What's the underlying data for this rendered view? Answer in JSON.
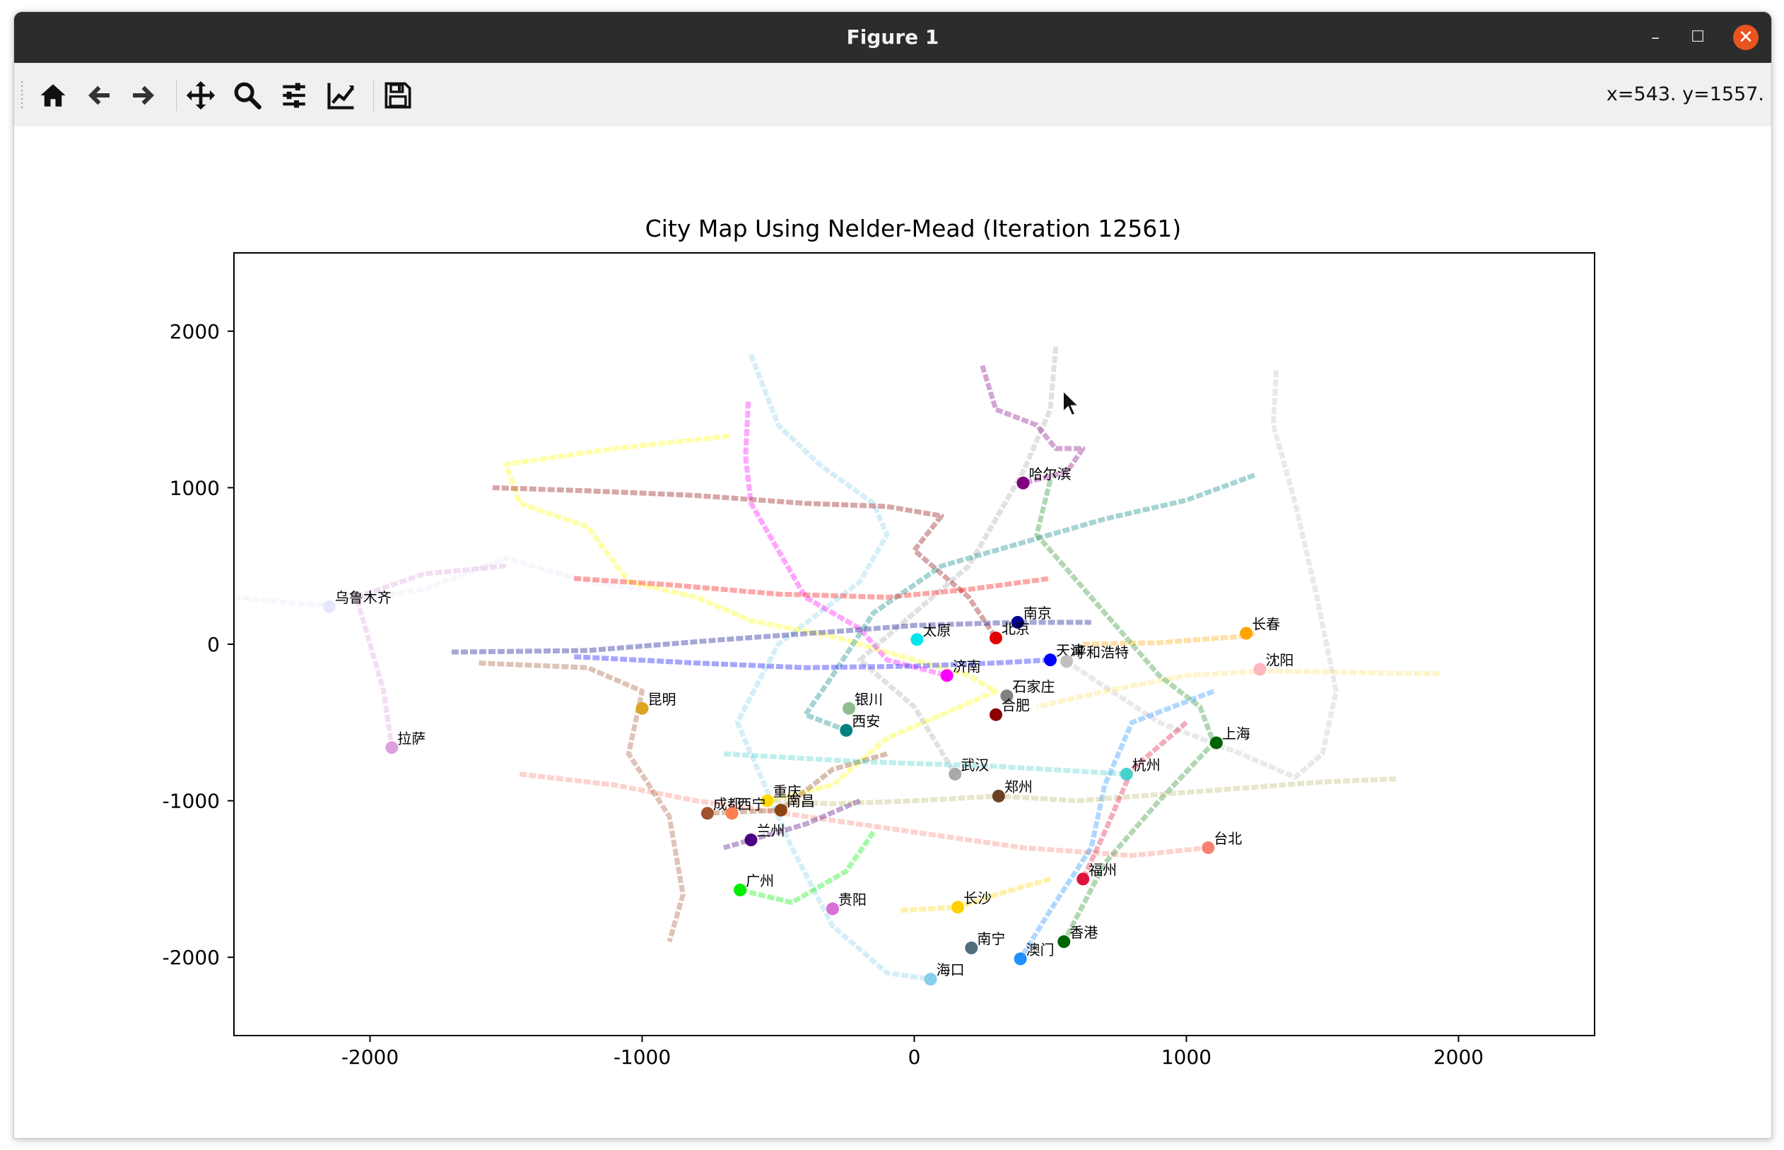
{
  "window": {
    "title": "Figure 1",
    "minimize_label": "–",
    "maximize_label": "☐",
    "close_label": "✕"
  },
  "toolbar": {
    "buttons": [
      {
        "name": "home-button",
        "icon": "home-icon"
      },
      {
        "name": "back-button",
        "icon": "arrow-left-icon"
      },
      {
        "name": "forward-button",
        "icon": "arrow-right-icon"
      },
      {
        "name": "pan-button",
        "icon": "move-icon"
      },
      {
        "name": "zoom-button",
        "icon": "search-icon"
      },
      {
        "name": "configure-subplots-button",
        "icon": "sliders-icon"
      },
      {
        "name": "edit-axis-button",
        "icon": "chart-line-icon"
      },
      {
        "name": "save-button",
        "icon": "floppy-disk-icon"
      }
    ],
    "coords": "x=543. y=1557."
  },
  "chart_data": {
    "type": "scatter",
    "title": "City Map Using Nelder-Mead (Iteration 12561)",
    "xlabel": "",
    "ylabel": "",
    "xlim": [
      -2500,
      2500
    ],
    "ylim": [
      -2500,
      2500
    ],
    "xticks": [
      -2000,
      -1000,
      0,
      1000,
      2000
    ],
    "yticks": [
      2000,
      1000,
      0,
      -1000,
      -2000
    ],
    "xtick_labels": [
      "-2000",
      "-1000",
      "0",
      "1000",
      "2000"
    ],
    "ytick_labels": [
      "2000",
      "1000",
      "0",
      "-1000",
      "-2000"
    ],
    "grid": false,
    "legend": "none",
    "cities": [
      {
        "name": "哈尔滨",
        "x": 400,
        "y": 1030,
        "color": "#800080"
      },
      {
        "name": "乌鲁木齐",
        "x": -2150,
        "y": 240,
        "color": "#e6e6fa"
      },
      {
        "name": "南京",
        "x": 380,
        "y": 140,
        "color": "#00008b"
      },
      {
        "name": "长春",
        "x": 1220,
        "y": 70,
        "color": "#ffa500"
      },
      {
        "name": "太原",
        "x": 10,
        "y": 30,
        "color": "#00e5ee"
      },
      {
        "name": "北京",
        "x": 300,
        "y": 40,
        "color": "#e00000"
      },
      {
        "name": "天津",
        "x": 500,
        "y": -100,
        "color": "#0000ff"
      },
      {
        "name": "呼和浩特",
        "x": 560,
        "y": -110,
        "color": "#c0c0c0"
      },
      {
        "name": "沈阳",
        "x": 1270,
        "y": -160,
        "color": "#ffb6c1"
      },
      {
        "name": "济南",
        "x": 120,
        "y": -200,
        "color": "#ff00ff"
      },
      {
        "name": "石家庄",
        "x": 340,
        "y": -330,
        "color": "#808080"
      },
      {
        "name": "合肥",
        "x": 300,
        "y": -450,
        "color": "#8b0000"
      },
      {
        "name": "银川",
        "x": -240,
        "y": -410,
        "color": "#8fbc8f"
      },
      {
        "name": "西安",
        "x": -250,
        "y": -550,
        "color": "#008080"
      },
      {
        "name": "昆明",
        "x": -1000,
        "y": -410,
        "color": "#daa520"
      },
      {
        "name": "拉萨",
        "x": -1920,
        "y": -660,
        "color": "#dda0dd"
      },
      {
        "name": "上海",
        "x": 1110,
        "y": -630,
        "color": "#006400"
      },
      {
        "name": "杭州",
        "x": 780,
        "y": -830,
        "color": "#48d1cc"
      },
      {
        "name": "武汉",
        "x": 150,
        "y": -830,
        "color": "#a9a9a9"
      },
      {
        "name": "郑州",
        "x": 310,
        "y": -970,
        "color": "#6b4226"
      },
      {
        "name": "重庆",
        "x": -540,
        "y": -1000,
        "color": "#ffd700"
      },
      {
        "name": "南昌",
        "x": -490,
        "y": -1060,
        "color": "#8b4513"
      },
      {
        "name": "成都",
        "x": -760,
        "y": -1080,
        "color": "#a0522d"
      },
      {
        "name": "西宁",
        "x": -670,
        "y": -1080,
        "color": "#ff7f50"
      },
      {
        "name": "兰州",
        "x": -600,
        "y": -1250,
        "color": "#4b0082"
      },
      {
        "name": "台北",
        "x": 1080,
        "y": -1300,
        "color": "#fa8072"
      },
      {
        "name": "福州",
        "x": 620,
        "y": -1500,
        "color": "#dc143c"
      },
      {
        "name": "广州",
        "x": -640,
        "y": -1570,
        "color": "#00ee00"
      },
      {
        "name": "贵阳",
        "x": -300,
        "y": -1690,
        "color": "#da70d6"
      },
      {
        "name": "长沙",
        "x": 160,
        "y": -1680,
        "color": "#ffd000"
      },
      {
        "name": "香港",
        "x": 550,
        "y": -1900,
        "color": "#006400"
      },
      {
        "name": "南宁",
        "x": 210,
        "y": -1940,
        "color": "#4f6d7a"
      },
      {
        "name": "澳门",
        "x": 390,
        "y": -2010,
        "color": "#1e90ff"
      },
      {
        "name": "海口",
        "x": 60,
        "y": -2140,
        "color": "#87ceeb"
      }
    ],
    "trajectories": [
      {
        "color": "#87ceeb",
        "points": [
          [
            -600,
            1850
          ],
          [
            -500,
            1400
          ],
          [
            -350,
            1150
          ],
          [
            -150,
            900
          ],
          [
            -100,
            700
          ],
          [
            -200,
            400
          ],
          [
            -500,
            0
          ],
          [
            -650,
            -500
          ],
          [
            -550,
            -900
          ],
          [
            -450,
            -1300
          ],
          [
            -300,
            -1800
          ],
          [
            -100,
            -2100
          ],
          [
            60,
            -2140
          ]
        ]
      },
      {
        "color": "#ffff00",
        "points": [
          [
            -680,
            1330
          ],
          [
            -1100,
            1250
          ],
          [
            -1500,
            1150
          ],
          [
            -1450,
            900
          ],
          [
            -1200,
            750
          ],
          [
            -1050,
            400
          ],
          [
            -800,
            300
          ],
          [
            -600,
            150
          ],
          [
            -300,
            50
          ],
          [
            0,
            -100
          ],
          [
            200,
            -200
          ],
          [
            300,
            -300
          ],
          [
            -100,
            -600
          ],
          [
            -300,
            -900
          ],
          [
            -540,
            -1000
          ]
        ]
      },
      {
        "color": "#ff00ff",
        "points": [
          [
            -610,
            1550
          ],
          [
            -620,
            1200
          ],
          [
            -600,
            900
          ],
          [
            -500,
            600
          ],
          [
            -400,
            300
          ],
          [
            -200,
            100
          ],
          [
            -100,
            -100
          ],
          [
            120,
            -200
          ]
        ]
      },
      {
        "color": "#a9a9a9",
        "points": [
          [
            520,
            1900
          ],
          [
            500,
            1500
          ],
          [
            400,
            1100
          ],
          [
            300,
            800
          ],
          [
            200,
            500
          ],
          [
            0,
            200
          ],
          [
            -200,
            -100
          ],
          [
            0,
            -400
          ],
          [
            150,
            -830
          ]
        ]
      },
      {
        "color": "#800080",
        "points": [
          [
            250,
            1780
          ],
          [
            300,
            1500
          ],
          [
            450,
            1400
          ],
          [
            520,
            1250
          ],
          [
            620,
            1250
          ],
          [
            560,
            1100
          ],
          [
            400,
            1030
          ]
        ]
      },
      {
        "color": "#8b0000",
        "points": [
          [
            -1550,
            1000
          ],
          [
            -1200,
            980
          ],
          [
            -800,
            950
          ],
          [
            -400,
            900
          ],
          [
            -100,
            880
          ],
          [
            100,
            820
          ],
          [
            0,
            600
          ],
          [
            200,
            300
          ],
          [
            300,
            40
          ]
        ]
      },
      {
        "color": "#008080",
        "points": [
          [
            1250,
            1080
          ],
          [
            1000,
            920
          ],
          [
            700,
            800
          ],
          [
            400,
            650
          ],
          [
            100,
            500
          ],
          [
            -150,
            200
          ],
          [
            -300,
            -200
          ],
          [
            -400,
            -450
          ],
          [
            -250,
            -550
          ]
        ]
      },
      {
        "color": "#00008b",
        "points": [
          [
            -1700,
            -50
          ],
          [
            -1200,
            -40
          ],
          [
            -700,
            30
          ],
          [
            -300,
            80
          ],
          [
            0,
            120
          ],
          [
            380,
            140
          ],
          [
            650,
            140
          ]
        ]
      },
      {
        "color": "#0000ff",
        "points": [
          [
            -1250,
            -80
          ],
          [
            -800,
            -120
          ],
          [
            -400,
            -150
          ],
          [
            0,
            -140
          ],
          [
            300,
            -120
          ],
          [
            500,
            -100
          ]
        ]
      },
      {
        "color": "#e6e6fa",
        "points": [
          [
            -2500,
            300
          ],
          [
            -2200,
            250
          ],
          [
            -1800,
            350
          ],
          [
            -1500,
            550
          ],
          [
            -1200,
            400
          ],
          [
            -1000,
            350
          ]
        ]
      },
      {
        "color": "#dda0dd",
        "points": [
          [
            -1500,
            500
          ],
          [
            -1800,
            450
          ],
          [
            -2050,
            300
          ],
          [
            -2000,
            0
          ],
          [
            -1950,
            -300
          ],
          [
            -1920,
            -660
          ]
        ]
      },
      {
        "color": "#c0c0c0",
        "points": [
          [
            1330,
            1750
          ],
          [
            1320,
            1400
          ],
          [
            1400,
            900
          ],
          [
            1480,
            300
          ],
          [
            1550,
            -300
          ],
          [
            1500,
            -700
          ],
          [
            1400,
            -850
          ],
          [
            1200,
            -700
          ],
          [
            900,
            -500
          ],
          [
            560,
            -110
          ]
        ]
      },
      {
        "color": "#ffa500",
        "points": [
          [
            620,
            0
          ],
          [
            900,
            10
          ],
          [
            1200,
            50
          ],
          [
            1250,
            70
          ]
        ]
      },
      {
        "color": "#ffe066",
        "points": [
          [
            1930,
            -190
          ],
          [
            1600,
            -180
          ],
          [
            1300,
            -170
          ],
          [
            1000,
            -200
          ],
          [
            700,
            -300
          ],
          [
            450,
            -400
          ]
        ]
      },
      {
        "color": "#fa8072",
        "points": [
          [
            -1450,
            -830
          ],
          [
            -1100,
            -900
          ],
          [
            -800,
            -1000
          ],
          [
            -400,
            -1100
          ],
          [
            0,
            -1200
          ],
          [
            400,
            -1300
          ],
          [
            800,
            -1350
          ],
          [
            1080,
            -1300
          ]
        ]
      },
      {
        "color": "#228b22",
        "points": [
          [
            500,
            1050
          ],
          [
            450,
            700
          ],
          [
            600,
            400
          ],
          [
            750,
            100
          ],
          [
            900,
            -200
          ],
          [
            1050,
            -400
          ],
          [
            1100,
            -630
          ],
          [
            900,
            -1000
          ],
          [
            700,
            -1400
          ],
          [
            550,
            -1900
          ]
        ]
      },
      {
        "color": "#1e90ff",
        "points": [
          [
            1100,
            -300
          ],
          [
            800,
            -500
          ],
          [
            700,
            -900
          ],
          [
            650,
            -1300
          ],
          [
            500,
            -1700
          ],
          [
            390,
            -2010
          ]
        ]
      },
      {
        "color": "#ff0000",
        "points": [
          [
            -1250,
            420
          ],
          [
            -900,
            380
          ],
          [
            -500,
            320
          ],
          [
            -100,
            300
          ],
          [
            200,
            350
          ],
          [
            500,
            420
          ]
        ]
      },
      {
        "color": "#a0522d",
        "points": [
          [
            -1600,
            -120
          ],
          [
            -1200,
            -150
          ],
          [
            -1000,
            -300
          ],
          [
            -1050,
            -700
          ],
          [
            -900,
            -1100
          ],
          [
            -850,
            -1600
          ],
          [
            -900,
            -1900
          ]
        ]
      },
      {
        "color": "#00ee00",
        "points": [
          [
            -150,
            -1200
          ],
          [
            -250,
            -1450
          ],
          [
            -450,
            -1650
          ],
          [
            -640,
            -1570
          ]
        ]
      },
      {
        "color": "#bdb76b",
        "points": [
          [
            1770,
            -860
          ],
          [
            1500,
            -880
          ],
          [
            1200,
            -920
          ],
          [
            900,
            -960
          ],
          [
            600,
            -1000
          ],
          [
            310,
            -970
          ],
          [
            0,
            -1000
          ],
          [
            -300,
            -1020
          ],
          [
            -540,
            -1000
          ]
        ]
      },
      {
        "color": "#8b4513",
        "points": [
          [
            -100,
            -700
          ],
          [
            -300,
            -800
          ],
          [
            -490,
            -1060
          ],
          [
            -760,
            -1080
          ]
        ]
      },
      {
        "color": "#dc143c",
        "points": [
          [
            1000,
            -500
          ],
          [
            800,
            -800
          ],
          [
            700,
            -1200
          ],
          [
            620,
            -1500
          ]
        ]
      },
      {
        "color": "#4b0082",
        "points": [
          [
            -200,
            -1000
          ],
          [
            -400,
            -1150
          ],
          [
            -600,
            -1250
          ],
          [
            -700,
            -1300
          ]
        ]
      },
      {
        "color": "#48d1cc",
        "points": [
          [
            -700,
            -700
          ],
          [
            -200,
            -750
          ],
          [
            300,
            -780
          ],
          [
            780,
            -830
          ]
        ]
      },
      {
        "color": "#ffd700",
        "points": [
          [
            -50,
            -1700
          ],
          [
            160,
            -1680
          ],
          [
            300,
            -1600
          ],
          [
            500,
            -1500
          ]
        ]
      }
    ]
  }
}
